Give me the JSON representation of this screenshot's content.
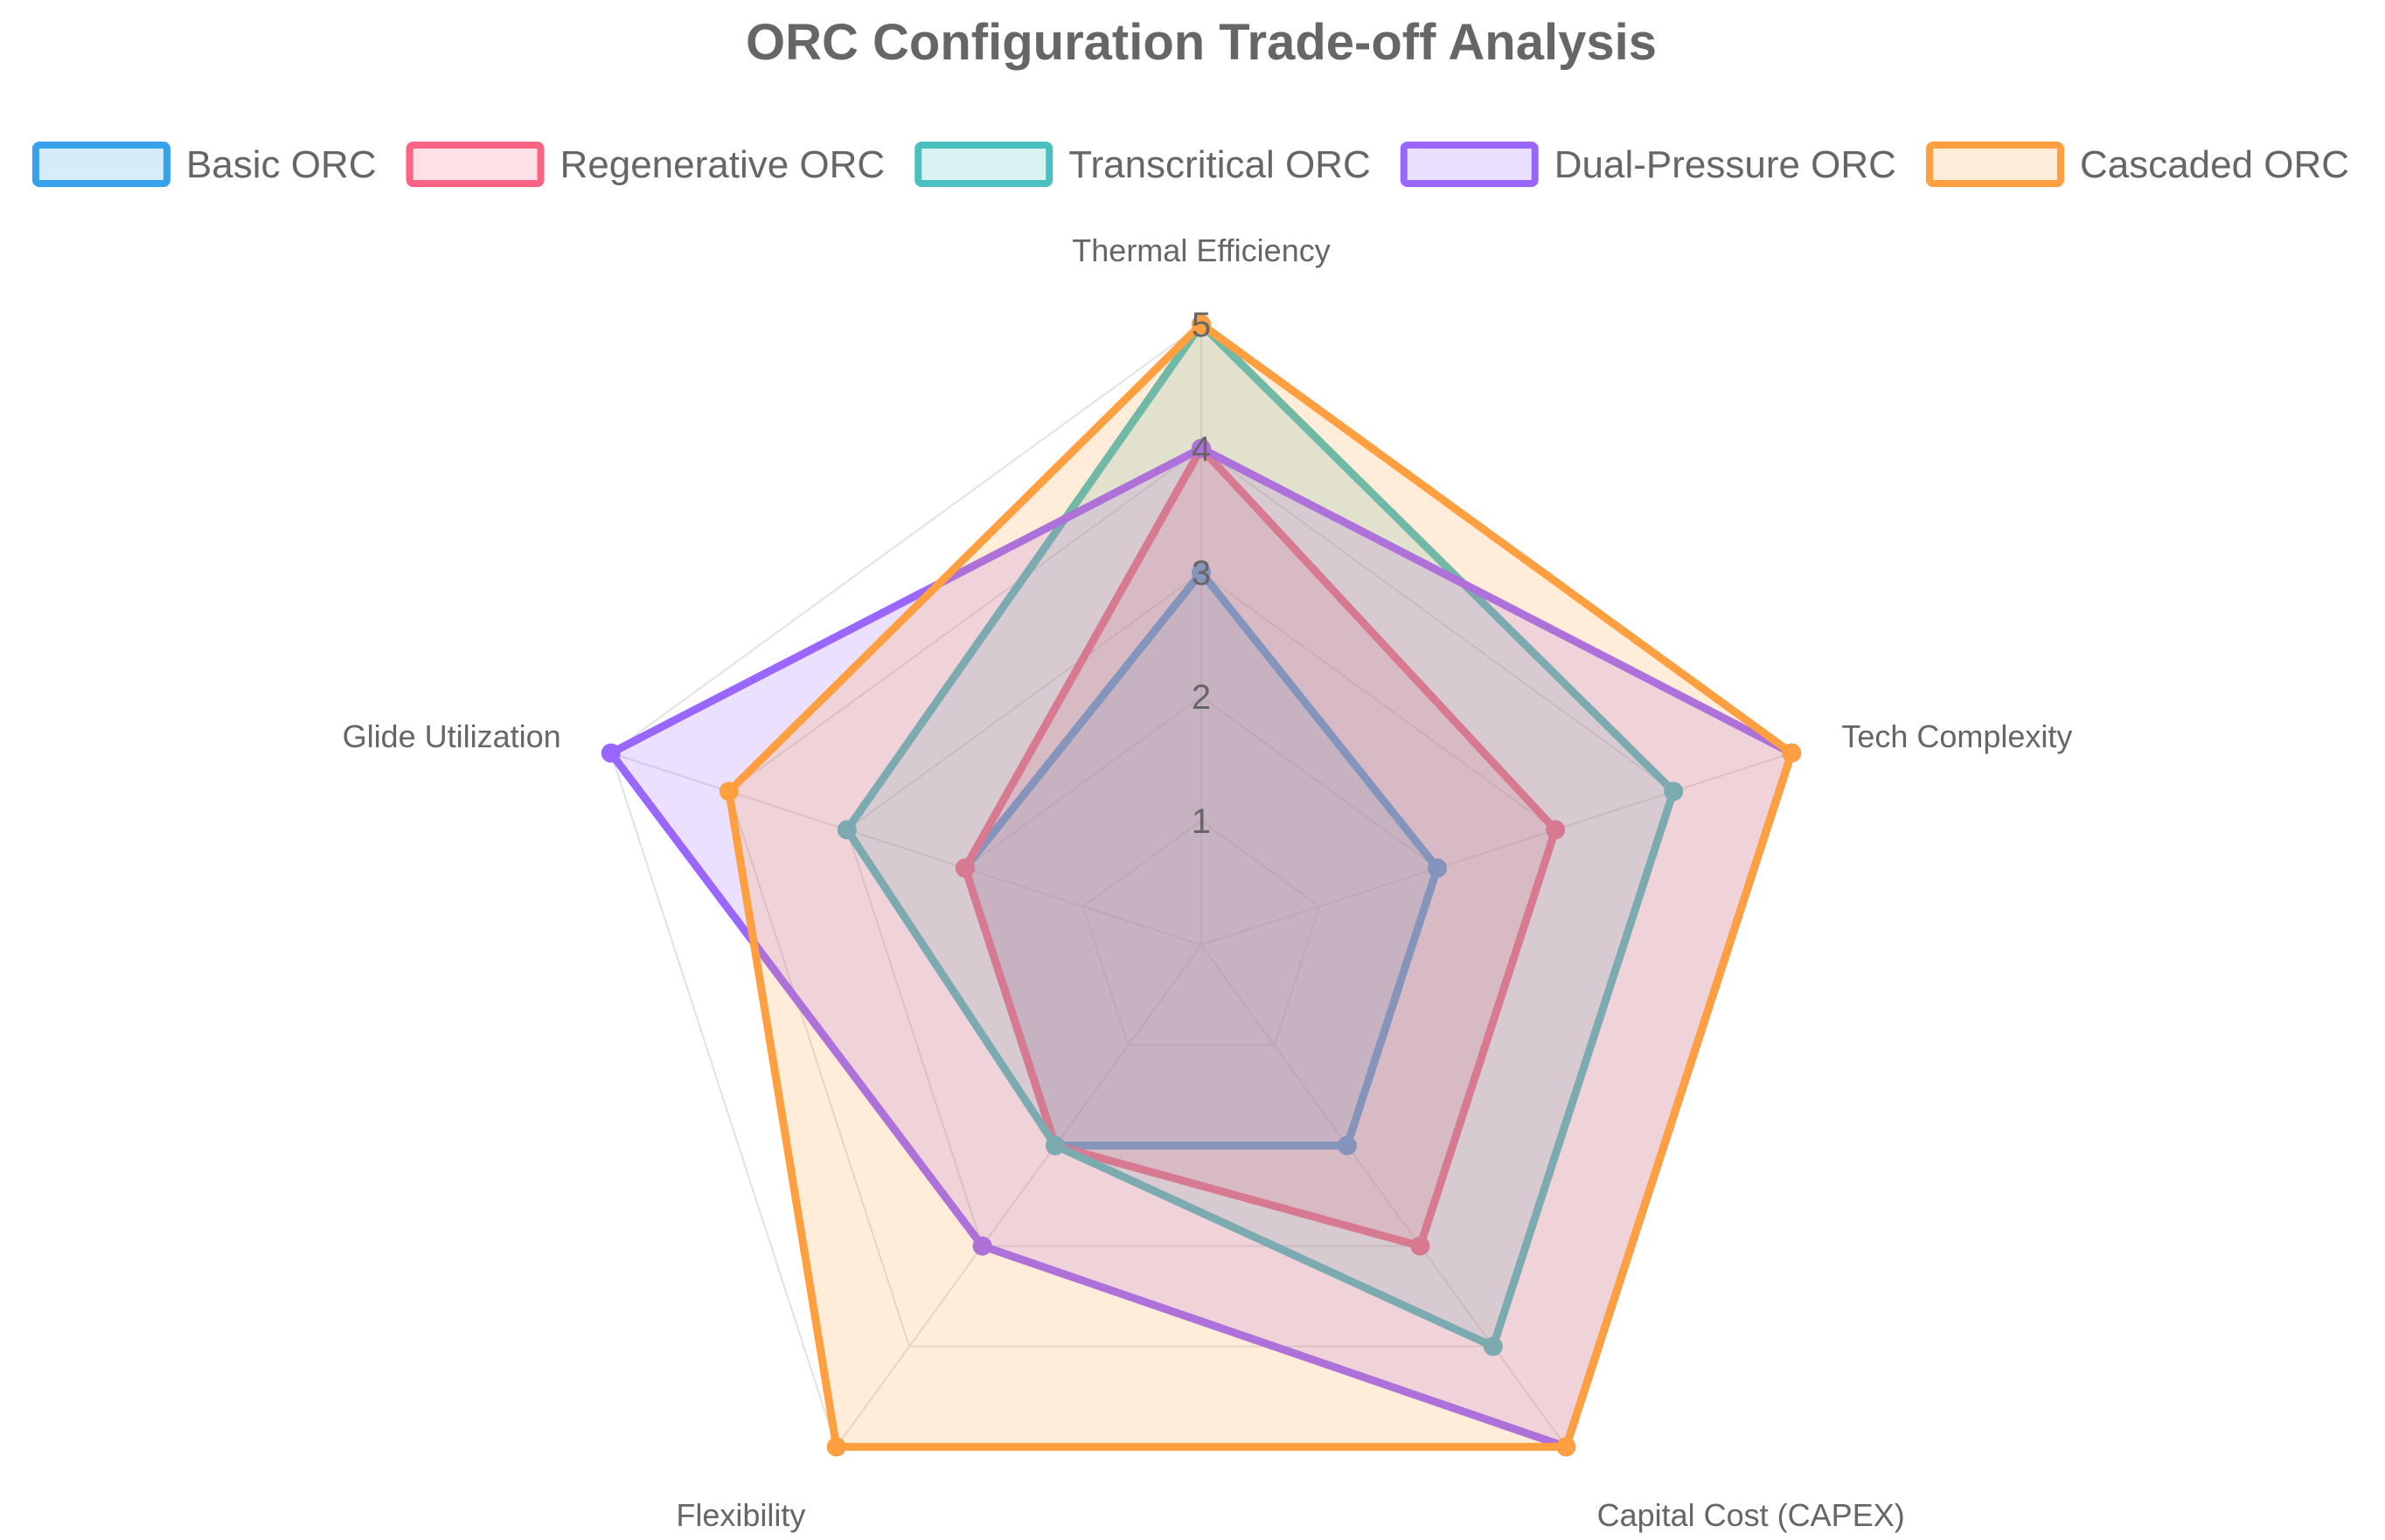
{
  "chart_data": {
    "type": "radar",
    "title": "ORC Configuration Trade-off Analysis",
    "axes": [
      "Thermal Efficiency",
      "Tech Complexity",
      "Capital Cost (CAPEX)",
      "Flexibility",
      "Glide Utilization"
    ],
    "r_range": [
      0,
      5
    ],
    "r_ticks": [
      "1",
      "2",
      "3",
      "4",
      "5"
    ],
    "grid": true,
    "legend_position": "top",
    "series": [
      {
        "name": "Basic ORC",
        "values": [
          3,
          2,
          2,
          2,
          2
        ],
        "color": "#36a2eb",
        "fill": "rgba(54,162,235,0.2)"
      },
      {
        "name": "Regenerative ORC",
        "values": [
          4,
          3,
          3,
          2,
          2
        ],
        "color": "#ff6384",
        "fill": "rgba(255,99,132,0.2)"
      },
      {
        "name": "Transcritical ORC",
        "values": [
          5,
          4,
          4,
          2,
          3
        ],
        "color": "#4bc0c0",
        "fill": "rgba(75,192,192,0.2)"
      },
      {
        "name": "Dual-Pressure ORC",
        "values": [
          4,
          5,
          5,
          3,
          5
        ],
        "color": "#9966ff",
        "fill": "rgba(153,102,255,0.2)"
      },
      {
        "name": "Cascaded ORC",
        "values": [
          5,
          5,
          5,
          5,
          4
        ],
        "color": "#ff9f40",
        "fill": "rgba(255,159,64,0.2)"
      }
    ]
  }
}
